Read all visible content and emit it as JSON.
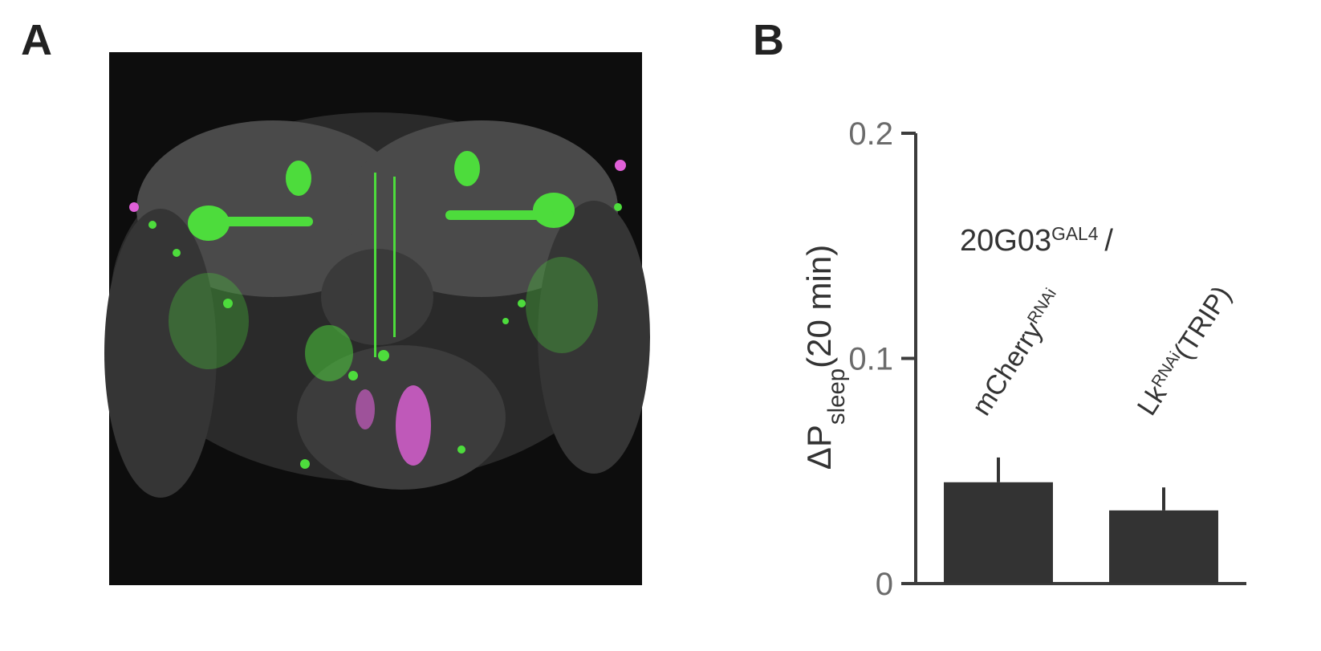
{
  "panels": {
    "a": {
      "label": "A"
    },
    "b": {
      "label": "B"
    }
  },
  "chart_data": {
    "type": "bar",
    "y_label": {
      "main": "ΔP",
      "sub": "sleep",
      "suffix": "(20 min)"
    },
    "annotation": {
      "main": "20G03",
      "sup": "GAL4",
      "suffix": "/"
    },
    "categories": [
      {
        "main": "mCherry",
        "sup": "RNAi"
      },
      {
        "main": "Lk",
        "sup": "RNAi",
        "suffix": "(TRIP)"
      }
    ],
    "values": [
      0.045,
      0.0325
    ],
    "errors": [
      0.011,
      0.0102
    ],
    "color": "#333333",
    "ylim": [
      0,
      0.2
    ],
    "yticks": [
      0,
      0.1,
      0.2
    ],
    "grid": false
  }
}
